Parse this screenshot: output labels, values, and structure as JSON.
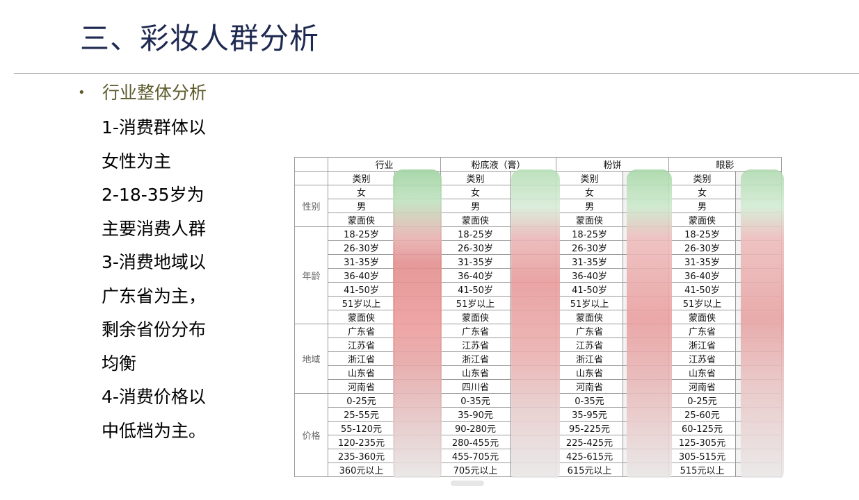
{
  "slide": {
    "title": "三、彩妆人群分析",
    "bullet_heading": "行业整体分析",
    "bullet_symbol": "•",
    "body_lines": [
      "1-消费群体以",
      "女性为主",
      "2-18-35岁为",
      "主要消费人群",
      "3-消费地域以",
      "广东省为主，",
      "剩余省份分布",
      "均衡",
      "4-消费价格以",
      "中低档为主。"
    ]
  },
  "table": {
    "header_groups": [
      "行业",
      "粉底液（膏）",
      "粉饼",
      "眼影"
    ],
    "subheader": "类别",
    "sections": [
      "性别",
      "年龄",
      "地域",
      "价格"
    ],
    "columns": [
      {
        "group": "行业",
        "rows": [
          "女",
          "男",
          "蒙面侠",
          "18-25岁",
          "26-30岁",
          "31-35岁",
          "36-40岁",
          "41-50岁",
          "51岁以上",
          "蒙面侠",
          "广东省",
          "江苏省",
          "浙江省",
          "山东省",
          "河南省",
          "0-25元",
          "25-55元",
          "55-120元",
          "120-235元",
          "235-360元",
          "360元以上"
        ]
      },
      {
        "group": "粉底液（膏）",
        "rows": [
          "女",
          "男",
          "蒙面侠",
          "18-25岁",
          "26-30岁",
          "31-35岁",
          "36-40岁",
          "41-50岁",
          "51岁以上",
          "蒙面侠",
          "广东省",
          "江苏省",
          "浙江省",
          "山东省",
          "四川省",
          "0-35元",
          "35-90元",
          "90-280元",
          "280-455元",
          "455-705元",
          "705元以上"
        ]
      },
      {
        "group": "粉饼",
        "rows": [
          "女",
          "男",
          "蒙面侠",
          "18-25岁",
          "26-30岁",
          "31-35岁",
          "36-40岁",
          "41-50岁",
          "51岁以上",
          "蒙面侠",
          "广东省",
          "江苏省",
          "浙江省",
          "山东省",
          "河南省",
          "0-35元",
          "35-95元",
          "95-225元",
          "225-425元",
          "425-615元",
          "615元以上"
        ]
      },
      {
        "group": "眼影",
        "rows": [
          "女",
          "男",
          "蒙面侠",
          "18-25岁",
          "26-30岁",
          "31-35岁",
          "36-40岁",
          "41-50岁",
          "51岁以上",
          "蒙面侠",
          "广东省",
          "浙江省",
          "江苏省",
          "山东省",
          "河南省",
          "0-25元",
          "25-60元",
          "60-125元",
          "125-305元",
          "305-515元",
          "515元以上"
        ]
      }
    ]
  }
}
